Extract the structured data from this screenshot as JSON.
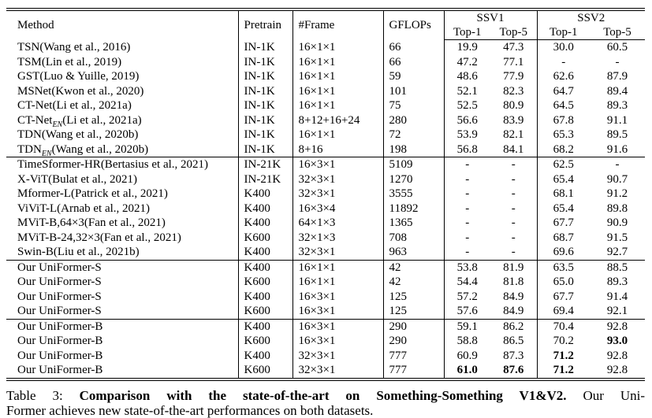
{
  "table": {
    "headers": {
      "method": "Method",
      "pretrain": "Pretrain",
      "frame": "#Frame",
      "gflops": "GFLOPs",
      "ssv1": "SSV1",
      "ssv2": "SSV2",
      "ssv1_top1": "Top-1",
      "ssv1_top5": "Top-5",
      "ssv2_top1": "Top-1",
      "ssv2_top5": "Top-5"
    },
    "groups": [
      {
        "rows": [
          {
            "method_pre": "TSN(Wang et al., 2016)",
            "method_sub": "",
            "method_post": "",
            "pretrain": "IN-1K",
            "frames": "16×1×1",
            "gflops": "66",
            "s1t1": "19.9",
            "s1t5": "47.3",
            "s2t1": "30.0",
            "s2t5": "60.5",
            "bold": []
          },
          {
            "method_pre": "TSM(Lin et al., 2019)",
            "method_sub": "",
            "method_post": "",
            "pretrain": "IN-1K",
            "frames": "16×1×1",
            "gflops": "66",
            "s1t1": "47.2",
            "s1t5": "77.1",
            "s2t1": "-",
            "s2t5": "-",
            "bold": []
          },
          {
            "method_pre": "GST(Luo & Yuille, 2019)",
            "method_sub": "",
            "method_post": "",
            "pretrain": "IN-1K",
            "frames": "16×1×1",
            "gflops": "59",
            "s1t1": "48.6",
            "s1t5": "77.9",
            "s2t1": "62.6",
            "s2t5": "87.9",
            "bold": []
          },
          {
            "method_pre": "MSNet(Kwon et al., 2020)",
            "method_sub": "",
            "method_post": "",
            "pretrain": "IN-1K",
            "frames": "16×1×1",
            "gflops": "101",
            "s1t1": "52.1",
            "s1t5": "82.3",
            "s2t1": "64.7",
            "s2t5": "89.4",
            "bold": []
          },
          {
            "method_pre": "CT-Net(Li et al., 2021a)",
            "method_sub": "",
            "method_post": "",
            "pretrain": "IN-1K",
            "frames": "16×1×1",
            "gflops": "75",
            "s1t1": "52.5",
            "s1t5": "80.9",
            "s2t1": "64.5",
            "s2t5": "89.3",
            "bold": []
          },
          {
            "method_pre": "CT-Net",
            "method_sub": "EN",
            "method_post": "(Li et al., 2021a)",
            "pretrain": "IN-1K",
            "frames": "8+12+16+24",
            "gflops": "280",
            "s1t1": "56.6",
            "s1t5": "83.9",
            "s2t1": "67.8",
            "s2t5": "91.1",
            "bold": []
          },
          {
            "method_pre": "TDN(Wang et al., 2020b)",
            "method_sub": "",
            "method_post": "",
            "pretrain": "IN-1K",
            "frames": "16×1×1",
            "gflops": "72",
            "s1t1": "53.9",
            "s1t5": "82.1",
            "s2t1": "65.3",
            "s2t5": "89.5",
            "bold": []
          },
          {
            "method_pre": "TDN",
            "method_sub": "EN",
            "method_post": "(Wang et al., 2020b)",
            "pretrain": "IN-1K",
            "frames": "8+16",
            "gflops": "198",
            "s1t1": "56.8",
            "s1t5": "84.1",
            "s2t1": "68.2",
            "s2t5": "91.6",
            "bold": []
          }
        ]
      },
      {
        "rows": [
          {
            "method_pre": "TimeSformer-HR(Bertasius et al., 2021)",
            "method_sub": "",
            "method_post": "",
            "pretrain": "IN-21K",
            "frames": "16×3×1",
            "gflops": "5109",
            "s1t1": "-",
            "s1t5": "-",
            "s2t1": "62.5",
            "s2t5": "-",
            "bold": []
          },
          {
            "method_pre": "X-ViT(Bulat et al., 2021)",
            "method_sub": "",
            "method_post": "",
            "pretrain": "IN-21K",
            "frames": "32×3×1",
            "gflops": "1270",
            "s1t1": "-",
            "s1t5": "-",
            "s2t1": "65.4",
            "s2t5": "90.7",
            "bold": []
          },
          {
            "method_pre": "Mformer-L(Patrick et al., 2021)",
            "method_sub": "",
            "method_post": "",
            "pretrain": "K400",
            "frames": "32×3×1",
            "gflops": "3555",
            "s1t1": "-",
            "s1t5": "-",
            "s2t1": "68.1",
            "s2t5": "91.2",
            "bold": []
          },
          {
            "method_pre": "ViViT-L(Arnab et al., 2021)",
            "method_sub": "",
            "method_post": "",
            "pretrain": "K400",
            "frames": "16×3×4",
            "gflops": "11892",
            "s1t1": "-",
            "s1t5": "-",
            "s2t1": "65.4",
            "s2t5": "89.8",
            "bold": []
          },
          {
            "method_pre": "MViT-B,64×3(Fan et al., 2021)",
            "method_sub": "",
            "method_post": "",
            "pretrain": "K400",
            "frames": "64×1×3",
            "gflops": "1365",
            "s1t1": "-",
            "s1t5": "-",
            "s2t1": "67.7",
            "s2t5": "90.9",
            "bold": []
          },
          {
            "method_pre": "MViT-B-24,32×3(Fan et al., 2021)",
            "method_sub": "",
            "method_post": "",
            "pretrain": "K600",
            "frames": "32×1×3",
            "gflops": "708",
            "s1t1": "-",
            "s1t5": "-",
            "s2t1": "68.7",
            "s2t5": "91.5",
            "bold": []
          },
          {
            "method_pre": "Swin-B(Liu et al., 2021b)",
            "method_sub": "",
            "method_post": "",
            "pretrain": "K400",
            "frames": "32×3×1",
            "gflops": "963",
            "s1t1": "-",
            "s1t5": "-",
            "s2t1": "69.6",
            "s2t5": "92.7",
            "bold": []
          }
        ]
      },
      {
        "rows": [
          {
            "method_pre": "Our UniFormer-S",
            "method_sub": "",
            "method_post": "",
            "pretrain": "K400",
            "frames": "16×1×1",
            "gflops": "42",
            "s1t1": "53.8",
            "s1t5": "81.9",
            "s2t1": "63.5",
            "s2t5": "88.5",
            "bold": []
          },
          {
            "method_pre": "Our UniFormer-S",
            "method_sub": "",
            "method_post": "",
            "pretrain": "K600",
            "frames": "16×1×1",
            "gflops": "42",
            "s1t1": "54.4",
            "s1t5": "81.8",
            "s2t1": "65.0",
            "s2t5": "89.3",
            "bold": []
          },
          {
            "method_pre": "Our UniFormer-S",
            "method_sub": "",
            "method_post": "",
            "pretrain": "K400",
            "frames": "16×3×1",
            "gflops": "125",
            "s1t1": "57.2",
            "s1t5": "84.9",
            "s2t1": "67.7",
            "s2t5": "91.4",
            "bold": []
          },
          {
            "method_pre": "Our UniFormer-S",
            "method_sub": "",
            "method_post": "",
            "pretrain": "K600",
            "frames": "16×3×1",
            "gflops": "125",
            "s1t1": "57.6",
            "s1t5": "84.9",
            "s2t1": "69.4",
            "s2t5": "92.1",
            "bold": []
          }
        ]
      },
      {
        "rows": [
          {
            "method_pre": "Our UniFormer-B",
            "method_sub": "",
            "method_post": "",
            "pretrain": "K400",
            "frames": "16×3×1",
            "gflops": "290",
            "s1t1": "59.1",
            "s1t5": "86.2",
            "s2t1": "70.4",
            "s2t5": "92.8",
            "bold": []
          },
          {
            "method_pre": "Our UniFormer-B",
            "method_sub": "",
            "method_post": "",
            "pretrain": "K600",
            "frames": "16×3×1",
            "gflops": "290",
            "s1t1": "58.8",
            "s1t5": "86.5",
            "s2t1": "70.2",
            "s2t5": "93.0",
            "bold": [
              "s2t5"
            ]
          },
          {
            "method_pre": "Our UniFormer-B",
            "method_sub": "",
            "method_post": "",
            "pretrain": "K400",
            "frames": "32×3×1",
            "gflops": "777",
            "s1t1": "60.9",
            "s1t5": "87.3",
            "s2t1": "71.2",
            "s2t5": "92.8",
            "bold": [
              "s2t1"
            ]
          },
          {
            "method_pre": "Our UniFormer-B",
            "method_sub": "",
            "method_post": "",
            "pretrain": "K600",
            "frames": "32×3×1",
            "gflops": "777",
            "s1t1": "61.0",
            "s1t5": "87.6",
            "s2t1": "71.2",
            "s2t5": "92.8",
            "bold": [
              "s1t1",
              "s1t5",
              "s2t1"
            ]
          }
        ]
      }
    ]
  },
  "caption": {
    "label": "Table 3:",
    "title_bold": "Comparison with the state-of-the-art on Something-Something V1&V2.",
    "line1_tail": "Our Uni-",
    "line2": "Former achieves new state-of-the-art performances on both datasets."
  }
}
